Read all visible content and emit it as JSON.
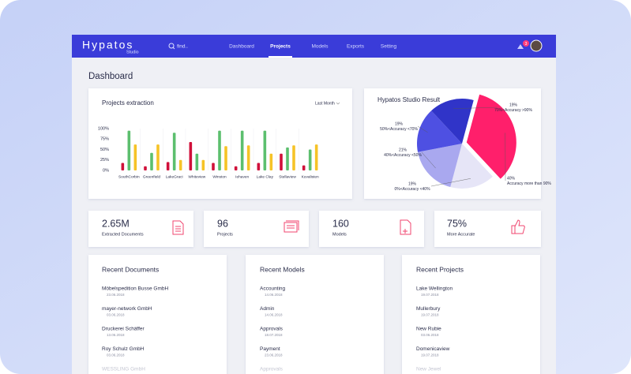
{
  "header": {
    "logo": "Hypatos",
    "logo_sub": "Studio",
    "search": "find..",
    "nav": [
      "Dashboard",
      "Projects",
      "Models",
      "Exports",
      "Setting"
    ],
    "active_nav": 1,
    "notifications": "3"
  },
  "page_title": "Dashboard",
  "chart_data": [
    {
      "type": "bar",
      "title": "Projects extraction",
      "dropdown": "Last Month",
      "categories": [
        "SouthCorbin",
        "Greenfield",
        "LakeGraci",
        "Whiteview",
        "Winston",
        "Iehaven",
        "Lake Clay",
        "Stellaview",
        "Kuvalisten"
      ],
      "series": [
        {
          "color": "#d0103a",
          "values": [
            18,
            10,
            20,
            68,
            18,
            10,
            18,
            40,
            12
          ]
        },
        {
          "color": "#5cbf6e",
          "values": [
            95,
            42,
            90,
            40,
            95,
            95,
            95,
            55,
            50
          ]
        },
        {
          "color": "#f6c327",
          "values": [
            62,
            62,
            25,
            25,
            58,
            60,
            40,
            60,
            62
          ]
        }
      ],
      "ylim": [
        0,
        100
      ],
      "yticks": [
        {
          "value": 100,
          "label": "100%"
        },
        {
          "value": 75,
          "label": "75%"
        },
        {
          "value": 50,
          "label": "50%"
        },
        {
          "value": 25,
          "label": "25%"
        },
        {
          "value": 0,
          "label": "0%"
        }
      ],
      "grid": false
    },
    {
      "type": "pie",
      "title": "Hypatos Studio Result",
      "categories": [
        "Accuracy more than 90%",
        "0%<Accuracy <40%",
        "40%<Accuracy <50%",
        "50%<Accuracy <70%",
        "70%<Accuracy >90%"
      ],
      "values": [
        40,
        19,
        21,
        19,
        19
      ],
      "value_labels": [
        "40%",
        "19%",
        "21%",
        "19%",
        "19%"
      ],
      "colors": [
        "#ff1f6b",
        "#e6e5f7",
        "#a9a8ef",
        "#4e50e2",
        "#3034c8"
      ],
      "exploded": 0
    }
  ],
  "stats": [
    {
      "value": "2.65M",
      "label": "Extracted Documents"
    },
    {
      "value": "96",
      "label": "Projects"
    },
    {
      "value": "160",
      "label": "Models"
    },
    {
      "value": "75%",
      "label": "More Accurate"
    }
  ],
  "lists": [
    {
      "title": "Recent Documents",
      "items": [
        {
          "name": "Möbelspedition Busse GmbH",
          "date": "23.06.2018"
        },
        {
          "name": "mayer-network GmbH",
          "date": "03.06.2018"
        },
        {
          "name": "Druckerei Schäffer",
          "date": "13.06.2018"
        },
        {
          "name": "Roy Schulz GmbH",
          "date": "03.06.2018"
        },
        {
          "name": "WESSLING GmbH"
        }
      ]
    },
    {
      "title": "Recent Models",
      "items": [
        {
          "name": "Accounting",
          "date": "14.06.2018"
        },
        {
          "name": "Admin",
          "date": "14.06.2018"
        },
        {
          "name": "Approvals",
          "date": "18.07.2018"
        },
        {
          "name": "Payment",
          "date": "23.06.2018"
        },
        {
          "name": "Approvals"
        }
      ]
    },
    {
      "title": "Recent Projects",
      "items": [
        {
          "name": "Lake Wellington",
          "date": "19.07.2018"
        },
        {
          "name": "Mullerbury",
          "date": "19.07.2018"
        },
        {
          "name": "New Rubie",
          "date": "03.06.2018"
        },
        {
          "name": "Domenicaview",
          "date": "19.07.2018"
        },
        {
          "name": "New Jewel"
        }
      ]
    }
  ]
}
